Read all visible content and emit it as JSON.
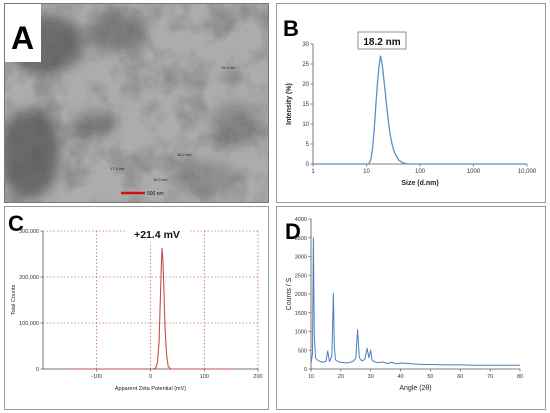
{
  "panels": {
    "a": {
      "letter": "A",
      "scale_label": "500 nm",
      "annotations": [
        "16.4 nm",
        "18.2 nm",
        "17.5 nm",
        "16.3 nm"
      ]
    },
    "b": {
      "letter": "B"
    },
    "c": {
      "letter": "C"
    },
    "d": {
      "letter": "D"
    }
  },
  "chart_data": [
    {
      "panel": "B",
      "type": "line",
      "xlabel": "Size (d.nm)",
      "ylabel": "Intensity (%)",
      "x_scale": "log",
      "xlim": [
        1,
        10000
      ],
      "ylim": [
        0,
        30
      ],
      "x_ticks": [
        1,
        10,
        100,
        1000,
        10000
      ],
      "x_tick_labels": [
        "1",
        "10",
        "100",
        "1000",
        "10,000"
      ],
      "y_ticks": [
        0,
        5,
        10,
        15,
        20,
        25,
        30
      ],
      "grid": false,
      "annotation": "18.2 nm",
      "series": [
        {
          "color": "#5b8fc9",
          "x": [
            1,
            11,
            12,
            13,
            14,
            15,
            16,
            17,
            18.2,
            19,
            20,
            22,
            24,
            26,
            28,
            30,
            33,
            36,
            40,
            45,
            50,
            60,
            100,
            1000,
            10000
          ],
          "y": [
            0,
            0,
            1,
            4,
            9,
            15,
            20,
            24,
            27,
            26,
            24,
            19,
            14,
            10,
            7,
            5,
            3,
            2,
            1,
            0.5,
            0.2,
            0,
            0,
            0,
            0
          ]
        }
      ]
    },
    {
      "panel": "C",
      "type": "line",
      "xlabel": "Apparent Zeta Potential (mV)",
      "ylabel": "Total Counts",
      "xlim": [
        -200,
        200
      ],
      "ylim": [
        0,
        300000
      ],
      "x_ticks": [
        -100,
        0,
        100,
        200
      ],
      "x_tick_labels": [
        "-100",
        "0",
        "100",
        "200"
      ],
      "y_ticks": [
        0,
        100000,
        200000,
        300000
      ],
      "y_tick_labels": [
        "0",
        "100,000",
        "200,000",
        "300,000"
      ],
      "grid": true,
      "annotation": "+21.4 mV",
      "series": [
        {
          "color": "#c0504d",
          "x": [
            -150,
            5,
            10,
            13,
            16,
            18,
            20,
            21.4,
            23,
            25,
            27,
            30,
            33,
            38,
            150
          ],
          "y": [
            0,
            0,
            2000,
            15000,
            60000,
            140000,
            220000,
            262000,
            240000,
            170000,
            90000,
            30000,
            5000,
            0,
            0
          ]
        }
      ]
    },
    {
      "panel": "D",
      "type": "line",
      "xlabel": "Angle (2θ)",
      "ylabel": "Counts / S",
      "xlim": [
        10,
        80
      ],
      "ylim": [
        0,
        4000
      ],
      "x_ticks": [
        10,
        20,
        30,
        40,
        50,
        60,
        70,
        80
      ],
      "y_ticks": [
        0,
        500,
        1000,
        1500,
        2000,
        2500,
        3000,
        3500,
        4000
      ],
      "grid": false,
      "series": [
        {
          "color": "#4a7ebb",
          "x": [
            10,
            10.5,
            10.8,
            11.1,
            11.5,
            12,
            13,
            14,
            15,
            15.6,
            16.2,
            17,
            17.5,
            17.8,
            18.2,
            19,
            20,
            21,
            22,
            23,
            24,
            25,
            25.6,
            26.2,
            27,
            28,
            28.8,
            29.4,
            30,
            30.4,
            31,
            32,
            33,
            34,
            35,
            36,
            37,
            38,
            39,
            40,
            42,
            45,
            48,
            50,
            55,
            60,
            65,
            70,
            75,
            80
          ],
          "y": [
            150,
            400,
            3500,
            900,
            300,
            250,
            200,
            180,
            200,
            480,
            200,
            350,
            2020,
            600,
            250,
            200,
            180,
            170,
            160,
            180,
            200,
            280,
            1050,
            300,
            220,
            250,
            550,
            300,
            500,
            250,
            200,
            180,
            170,
            190,
            160,
            150,
            180,
            150,
            140,
            160,
            150,
            130,
            120,
            120,
            110,
            110,
            100,
            100,
            100,
            100
          ]
        }
      ]
    }
  ]
}
